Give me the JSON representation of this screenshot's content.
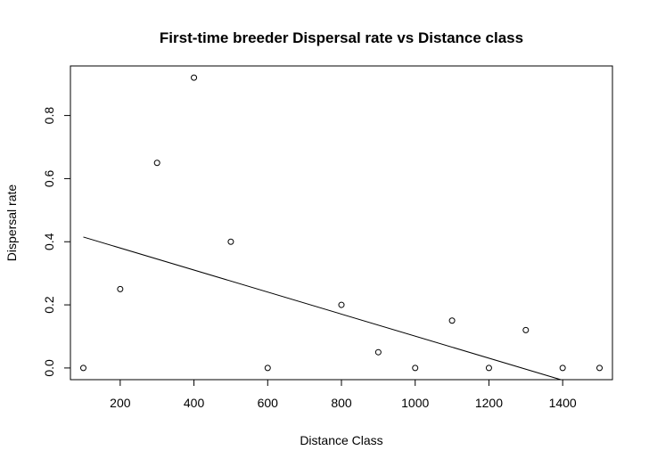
{
  "chart_data": {
    "type": "scatter",
    "title": "First-time breeder Dispersal rate vs Distance class",
    "xlabel": "Distance Class",
    "ylabel": "Dispersal rate",
    "xlim": [
      65,
      1535
    ],
    "ylim": [
      -0.037,
      0.957
    ],
    "x_ticks": [
      200,
      400,
      600,
      800,
      1000,
      1200,
      1400
    ],
    "x_tick_labels": [
      "200",
      "400",
      "600",
      "800",
      "1000",
      "1200",
      "1400"
    ],
    "y_ticks": [
      0.0,
      0.2,
      0.4,
      0.6,
      0.8
    ],
    "y_tick_labels": [
      "0.0",
      "0.2",
      "0.4",
      "0.6",
      "0.8"
    ],
    "grid": false,
    "points": [
      {
        "x": 100,
        "y": 0.0
      },
      {
        "x": 200,
        "y": 0.25
      },
      {
        "x": 300,
        "y": 0.65
      },
      {
        "x": 400,
        "y": 0.92
      },
      {
        "x": 500,
        "y": 0.4
      },
      {
        "x": 600,
        "y": 0.0
      },
      {
        "x": 800,
        "y": 0.2
      },
      {
        "x": 900,
        "y": 0.05
      },
      {
        "x": 1000,
        "y": 0.0
      },
      {
        "x": 1100,
        "y": 0.15
      },
      {
        "x": 1200,
        "y": 0.0
      },
      {
        "x": 1300,
        "y": 0.12
      },
      {
        "x": 1400,
        "y": 0.0
      },
      {
        "x": 1500,
        "y": 0.0
      }
    ],
    "fit_line": {
      "type": "linear",
      "x_start": 100,
      "y_start": 0.415,
      "x_end": 1395,
      "y_end": -0.037
    }
  }
}
